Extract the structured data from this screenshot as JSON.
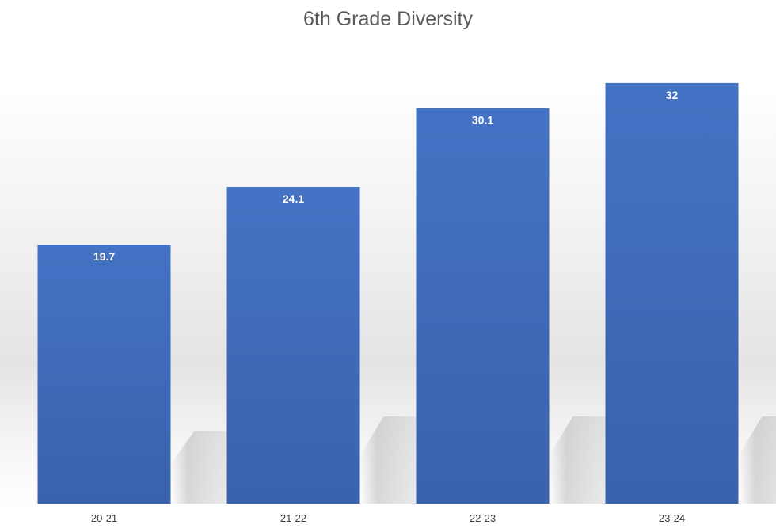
{
  "chart_data": {
    "type": "bar",
    "title": "6th Grade Diversity",
    "xlabel": "",
    "ylabel": "",
    "categories": [
      "20-21",
      "21-22",
      "22-23",
      "23-24"
    ],
    "values": [
      19.7,
      24.1,
      30.1,
      32
    ],
    "ylim": [
      0,
      33.5
    ],
    "grid": false,
    "legend": "none",
    "colors": {
      "bar": "#4472c4",
      "bar_dark": "#3a62ad",
      "label": "#ffffff",
      "title": "#595959",
      "tick": "#404040"
    }
  }
}
